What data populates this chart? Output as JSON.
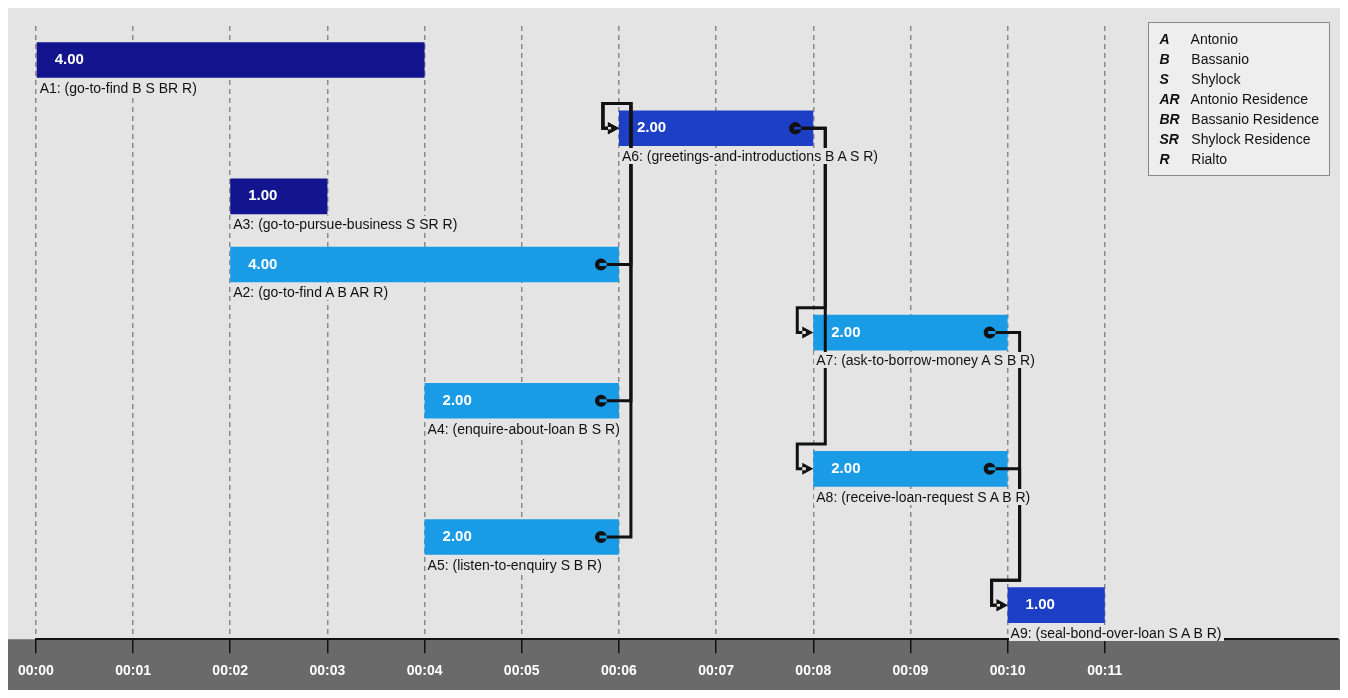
{
  "chart_data": {
    "type": "bar",
    "orientation": "horizontal",
    "categories": [
      "A1: (go-to-find B S BR R)",
      "A6: (greetings-and-introductions B A S R)",
      "A3: (go-to-pursue-business S SR R)",
      "A2: (go-to-find A B AR R)",
      "A7: (ask-to-borrow-money A S B R)",
      "A4: (enquire-about-loan B S R)",
      "A8: (receive-loan-request S A B R)",
      "A5: (listen-to-enquiry S B R)",
      "A9: (seal-bond-over-loan S A B R)"
    ],
    "base": [
      0,
      6,
      2,
      2,
      8,
      4,
      8,
      4,
      10
    ],
    "values": [
      4,
      2,
      1,
      4,
      2,
      2,
      2,
      2,
      1
    ],
    "value_labels": [
      "4.00",
      "2.00",
      "1.00",
      "4.00",
      "2.00",
      "2.00",
      "2.00",
      "2.00",
      "1.00"
    ],
    "colors": [
      "#13158f",
      "#1d3fc6",
      "#13158f",
      "#1a9be6",
      "#1a9be6",
      "#1a9be6",
      "#1a9be6",
      "#1a9be6",
      "#1d3fc6"
    ],
    "xlim": [
      0,
      13.4
    ],
    "xticks": [
      {
        "value": 0,
        "label": "00:00"
      },
      {
        "value": 1,
        "label": "00:01"
      },
      {
        "value": 2,
        "label": "00:02"
      },
      {
        "value": 3,
        "label": "00:03"
      },
      {
        "value": 4,
        "label": "00:04"
      },
      {
        "value": 5,
        "label": "00:05"
      },
      {
        "value": 6,
        "label": "00:06"
      },
      {
        "value": 7,
        "label": "00:07"
      },
      {
        "value": 8,
        "label": "00:08"
      },
      {
        "value": 9,
        "label": "00:09"
      },
      {
        "value": 10,
        "label": "00:10"
      },
      {
        "value": 11,
        "label": "00:11"
      }
    ],
    "grid": "x",
    "annotations": [
      "A Antonio",
      "B Bassanio",
      "S Shylock",
      "AR Antonio Residence",
      "BR Bassanio Residence",
      "SR Shylock Residence",
      "R Rialto"
    ]
  }
}
